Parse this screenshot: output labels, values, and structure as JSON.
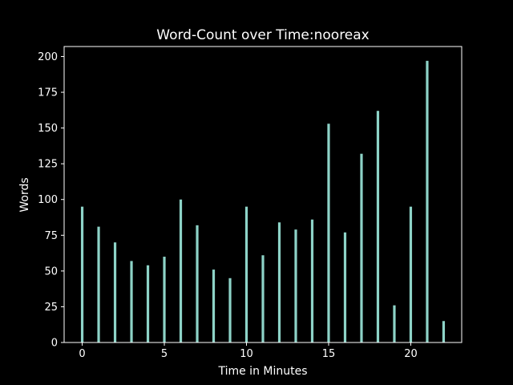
{
  "chart_data": {
    "type": "bar",
    "title": "Word-Count over Time:nooreax",
    "xlabel": "Time in Minutes",
    "ylabel": "Words",
    "x": [
      0,
      1,
      2,
      3,
      4,
      5,
      6,
      7,
      8,
      9,
      10,
      11,
      12,
      13,
      14,
      15,
      16,
      17,
      18,
      19,
      20,
      21,
      22
    ],
    "values": [
      95,
      81,
      70,
      57,
      54,
      60,
      100,
      82,
      51,
      45,
      95,
      61,
      84,
      79,
      86,
      153,
      77,
      132,
      162,
      26,
      95,
      197,
      15
    ],
    "xlim": [
      -1.1,
      23.1
    ],
    "ylim": [
      0,
      207
    ],
    "xticks": [
      "0",
      "5",
      "10",
      "15",
      "20"
    ],
    "yticks": [
      "0",
      "25",
      "50",
      "75",
      "100",
      "125",
      "150",
      "175",
      "200"
    ],
    "bar_color": "#8dd3c7",
    "background": "#000000",
    "foreground": "#ffffff",
    "grid": false,
    "legend": "none"
  }
}
